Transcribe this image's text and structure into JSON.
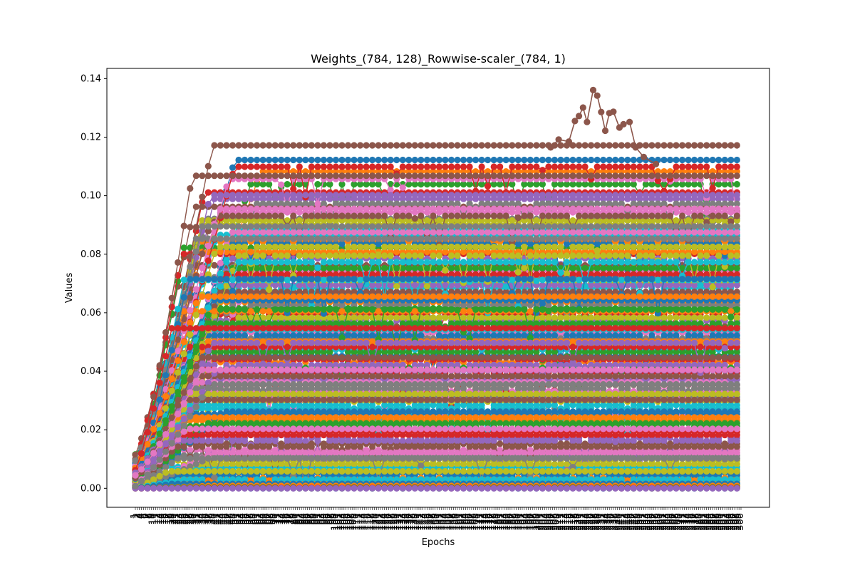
{
  "chart_data": {
    "type": "line",
    "title": "Weights_(784, 128)_Rowwise-scaler_(784, 1)",
    "xlabel": "Epochs",
    "ylabel": "Values",
    "ylim": [
      -0.0065,
      0.1435
    ],
    "yticks": [
      "0.00",
      "0.02",
      "0.04",
      "0.06",
      "0.08",
      "0.10",
      "0.12",
      "0.14"
    ],
    "x_range": [
      1,
      300
    ],
    "grid": false,
    "legend": "none",
    "series_count": 128,
    "marker": "circle",
    "series_colors": [
      "#1f77b4",
      "#ff7f0e",
      "#2ca02c",
      "#d62728",
      "#9467bd",
      "#8c564b",
      "#e377c2",
      "#7f7f7f",
      "#bcbd22",
      "#17becf"
    ],
    "series_plateau_levels": [
      0.1122,
      0.1083,
      0.1039,
      0.1011,
      0.0989,
      0.0962,
      0.0943,
      0.0921,
      0.0902,
      0.0884,
      0.0862,
      0.0843,
      0.0822,
      0.0801,
      0.0785,
      0.0762,
      0.0743,
      0.0721,
      0.0702,
      0.0684,
      0.0662,
      0.0636,
      0.0615,
      0.0595,
      0.0573,
      0.0553,
      0.0532,
      0.0512,
      0.0493,
      0.0474,
      0.0452,
      0.0431,
      0.0412,
      0.0394,
      0.0372,
      0.0353,
      0.0331,
      0.0312,
      0.0296,
      0.0273,
      0.0253,
      0.0232,
      0.0212,
      0.0193,
      0.0172,
      0.0152,
      0.0131,
      0.0112,
      0.0095,
      0.0073,
      0.0053,
      0.0035,
      0.0018,
      0.0005,
      0.0,
      0.1172,
      0.1057,
      0.0972,
      0.0915,
      0.0866,
      0.0835,
      0.0808,
      0.0752,
      0.0731,
      0.0694,
      0.0671,
      0.0651,
      0.0626,
      0.0583,
      0.0542,
      0.0522,
      0.0502,
      0.0465,
      0.0441,
      0.0421,
      0.0383,
      0.0362,
      0.0341,
      0.0322,
      0.0284,
      0.0262,
      0.0242,
      0.0222,
      0.0182,
      0.0162,
      0.0142,
      0.0121,
      0.0102,
      0.0083,
      0.0063,
      0.0044,
      0.0026,
      0.0012,
      0.1099,
      0.1002,
      0.0931,
      0.0875,
      0.0853,
      0.0795,
      0.0712,
      0.0643,
      0.0605,
      0.0563,
      0.0483,
      0.0403,
      0.0302,
      0.0203,
      0.0102,
      0.0058,
      0.003,
      0.0015,
      0.0008,
      0.0003,
      0.0001,
      0.0,
      0.1068,
      0.0955,
      0.0895,
      0.0825,
      0.0773,
      0.0715,
      0.0655,
      0.0611,
      0.0547,
      0.0497,
      0.0447,
      0.0405,
      0.0355
    ],
    "highlighted_series": {
      "color": "#8c564b",
      "peak": {
        "x": 227,
        "y": 0.1361
      },
      "values_sample": [
        [
          206,
          0.1165
        ],
        [
          210,
          0.1192
        ],
        [
          215,
          0.1185
        ],
        [
          218,
          0.1255
        ],
        [
          220,
          0.1272
        ],
        [
          222,
          0.1301
        ],
        [
          224,
          0.1252
        ],
        [
          227,
          0.1361
        ],
        [
          229,
          0.1342
        ],
        [
          231,
          0.1286
        ],
        [
          233,
          0.1222
        ],
        [
          235,
          0.1282
        ],
        [
          237,
          0.1287
        ],
        [
          240,
          0.1233
        ],
        [
          242,
          0.1244
        ],
        [
          245,
          0.1252
        ],
        [
          248,
          0.1165
        ],
        [
          252,
          0.1132
        ],
        [
          258,
          0.1108
        ]
      ]
    }
  }
}
